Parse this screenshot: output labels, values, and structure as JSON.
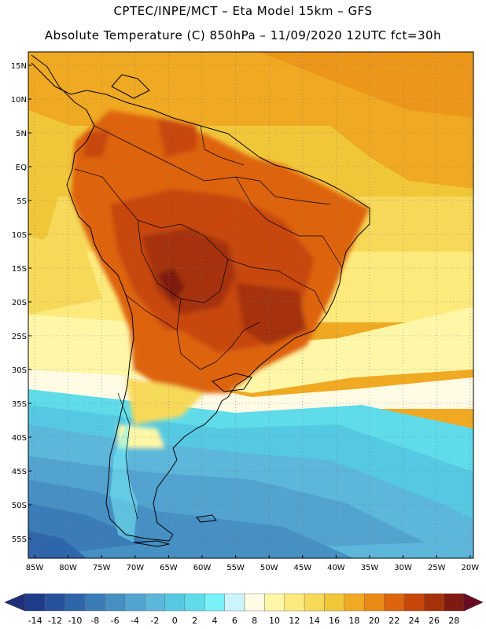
{
  "header": {
    "line1": "CPTEC/INPE/MCT –  Eta Model 15km – GFS",
    "line2": "Absolute Temperature (C) 850hPa – 11/09/2020 12UTC fct=30h"
  },
  "map": {
    "lat_labels": [
      "15N",
      "10N",
      "5N",
      "EQ",
      "5S",
      "10S",
      "15S",
      "20S",
      "25S",
      "30S",
      "35S",
      "40S",
      "45S",
      "50S",
      "55S"
    ],
    "lon_labels": [
      "85W",
      "80W",
      "75W",
      "70W",
      "65W",
      "60W",
      "55W",
      "50W",
      "45W",
      "40W",
      "35W",
      "30W",
      "25W",
      "20W"
    ],
    "grid": true
  },
  "colorbar": {
    "labels": [
      "-14",
      "-12",
      "-10",
      "-8",
      "-6",
      "-4",
      "-2",
      "0",
      "2",
      "4",
      "6",
      "8",
      "10",
      "12",
      "14",
      "16",
      "18",
      "20",
      "22",
      "24",
      "26",
      "28"
    ],
    "colors": [
      "#1e3b8c",
      "#27519c",
      "#2f66aa",
      "#3a7cb8",
      "#4690c4",
      "#52a3cf",
      "#5cb7da",
      "#56c9e2",
      "#5fdbe9",
      "#78f2f8",
      "#cbf4fb",
      "#fffbe5",
      "#fff7a8",
      "#fdea7c",
      "#f7d95a",
      "#f1c73a",
      "#f0a922",
      "#ea8a15",
      "#de640e",
      "#c7460a",
      "#a53208",
      "#7e1a10"
    ],
    "under_color": "#1e2f7a",
    "over_color": "#6a0a20"
  }
}
